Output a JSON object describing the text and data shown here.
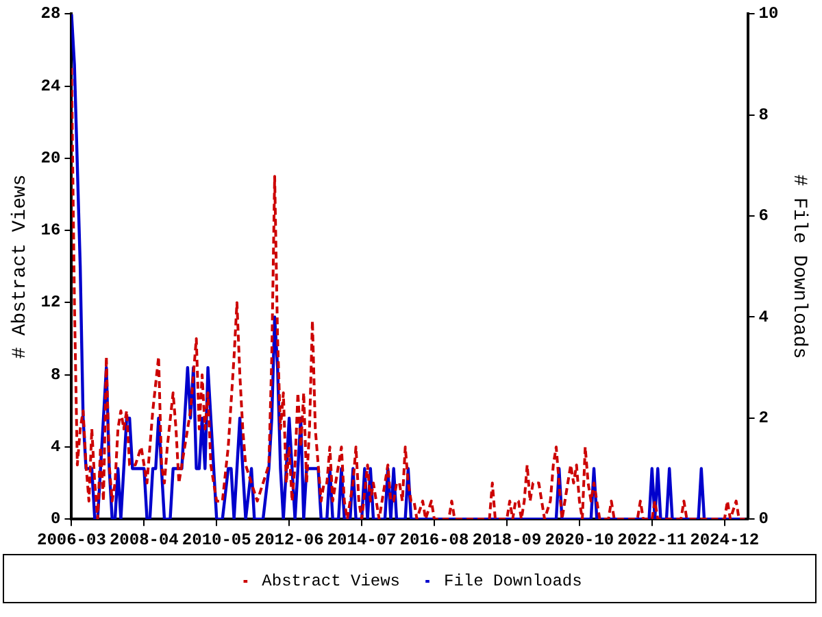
{
  "chart_data": {
    "type": "line",
    "ylabel": "# Abstract Views",
    "y2label": "# File Downloads",
    "xlim": [
      "2006-03",
      "2025-08"
    ],
    "xticks": [
      "2006-03",
      "2008-04",
      "2010-05",
      "2012-06",
      "2014-07",
      "2016-08",
      "2018-09",
      "2020-10",
      "2022-11",
      "2024-12"
    ],
    "ylim": [
      0,
      28
    ],
    "yticks": [
      0,
      4,
      8,
      12,
      16,
      20,
      24,
      28
    ],
    "y2lim": [
      0,
      10
    ],
    "y2ticks": [
      0,
      2,
      4,
      6,
      8,
      10
    ],
    "grid": false,
    "legend": "bottom",
    "marker": "none",
    "series": [
      {
        "name": "Abstract Views",
        "color": "#cc0000",
        "line_style": "dashed",
        "axis": "y",
        "x": [
          "2006-03",
          "2006-04",
          "2006-05",
          "2006-06",
          "2006-07",
          "2006-08",
          "2006-09",
          "2006-10",
          "2006-11",
          "2006-12",
          "2007-01",
          "2007-02",
          "2007-03",
          "2007-04",
          "2007-05",
          "2007-06",
          "2007-07",
          "2007-08",
          "2007-09",
          "2007-10",
          "2007-11",
          "2007-12",
          "2008-01",
          "2008-03",
          "2008-05",
          "2008-07",
          "2008-09",
          "2008-10",
          "2008-11",
          "2008-12",
          "2009-02",
          "2009-03",
          "2009-04",
          "2009-06",
          "2009-08",
          "2009-10",
          "2009-11",
          "2009-12",
          "2010-01",
          "2010-02",
          "2010-03",
          "2010-05",
          "2010-07",
          "2010-09",
          "2010-11",
          "2010-12",
          "2011-01",
          "2011-02",
          "2011-03",
          "2011-05",
          "2011-07",
          "2011-09",
          "2011-11",
          "2011-12",
          "2012-01",
          "2012-02",
          "2012-03",
          "2012-04",
          "2012-05",
          "2012-06",
          "2012-07",
          "2012-08",
          "2012-09",
          "2012-10",
          "2012-11",
          "2012-12",
          "2013-01",
          "2013-02",
          "2013-03",
          "2013-04",
          "2013-05",
          "2013-06",
          "2013-07",
          "2013-08",
          "2013-09",
          "2013-10",
          "2013-11",
          "2013-12",
          "2014-01",
          "2014-02",
          "2014-03",
          "2014-04",
          "2014-05",
          "2014-06",
          "2014-07",
          "2014-09",
          "2014-10",
          "2014-11",
          "2015-01",
          "2015-03",
          "2015-04",
          "2015-05",
          "2015-06",
          "2015-07",
          "2015-08",
          "2015-09",
          "2015-10",
          "2015-11",
          "2015-12",
          "2016-01",
          "2016-02",
          "2016-04",
          "2016-05",
          "2016-07",
          "2016-08",
          "2017-01",
          "2017-02",
          "2017-03",
          "2018-03",
          "2018-04",
          "2018-05",
          "2018-09",
          "2018-10",
          "2018-11",
          "2018-12",
          "2019-01",
          "2019-02",
          "2019-03",
          "2019-04",
          "2019-05",
          "2019-06",
          "2019-07",
          "2019-08",
          "2019-09",
          "2019-10",
          "2019-12",
          "2020-01",
          "2020-02",
          "2020-03",
          "2020-04",
          "2020-05",
          "2020-06",
          "2020-07",
          "2020-08",
          "2020-09",
          "2020-10",
          "2020-11",
          "2020-12",
          "2021-01",
          "2021-02",
          "2021-03",
          "2021-04",
          "2021-05",
          "2021-08",
          "2021-09",
          "2021-10",
          "2022-06",
          "2022-07",
          "2022-08",
          "2022-11",
          "2022-12",
          "2023-01",
          "2023-09",
          "2023-10",
          "2023-11",
          "2024-12",
          "2025-01",
          "2025-02",
          "2025-04",
          "2025-05",
          "2025-07"
        ],
        "values": [
          25,
          12,
          3,
          5,
          6,
          3,
          1,
          5,
          2,
          0,
          4,
          1,
          9,
          3,
          1,
          2,
          5,
          6,
          5,
          6,
          3,
          3,
          3,
          4,
          2,
          6,
          9,
          3,
          2,
          4,
          7,
          5,
          2,
          4,
          6,
          10,
          5,
          8,
          5,
          7,
          3,
          1,
          1,
          4,
          9,
          12,
          8,
          5,
          3,
          2,
          1,
          2,
          3,
          9,
          19,
          10,
          5,
          7,
          2,
          4,
          1,
          3,
          7,
          4,
          7,
          2,
          5,
          11,
          5,
          3,
          1,
          2,
          2,
          4,
          1,
          2,
          3,
          4,
          1,
          0,
          1,
          2,
          4,
          1,
          0,
          3,
          1,
          2,
          0,
          2,
          3,
          1,
          1,
          2,
          2,
          1,
          4,
          2,
          1,
          1,
          0,
          1,
          0,
          1,
          0,
          0,
          1,
          0,
          0,
          2,
          0,
          0,
          1,
          0,
          1,
          1,
          0,
          1,
          3,
          1,
          2,
          2,
          2,
          1,
          0,
          1,
          3,
          4,
          2,
          0,
          1,
          2,
          3,
          2,
          3,
          1,
          0,
          4,
          2,
          1,
          2,
          1,
          0,
          0,
          1,
          0,
          0,
          1,
          0,
          0,
          1,
          0,
          0,
          1,
          0,
          0,
          1,
          0,
          1,
          0,
          0
        ]
      },
      {
        "name": "File Downloads",
        "color": "#0000cc",
        "line_style": "solid",
        "axis": "y2",
        "x": [
          "2006-03",
          "2006-04",
          "2006-05",
          "2006-06",
          "2006-07",
          "2006-08",
          "2006-09",
          "2006-10",
          "2006-11",
          "2006-12",
          "2007-01",
          "2007-02",
          "2007-03",
          "2007-04",
          "2007-05",
          "2007-06",
          "2007-07",
          "2007-08",
          "2007-09",
          "2007-10",
          "2007-11",
          "2007-12",
          "2008-01",
          "2008-02",
          "2008-03",
          "2008-04",
          "2008-05",
          "2008-06",
          "2008-07",
          "2008-08",
          "2008-09",
          "2008-10",
          "2008-11",
          "2008-12",
          "2009-01",
          "2009-02",
          "2009-03",
          "2009-04",
          "2009-05",
          "2009-06",
          "2009-07",
          "2009-08",
          "2009-09",
          "2009-10",
          "2009-11",
          "2009-12",
          "2010-01",
          "2010-02",
          "2010-03",
          "2010-04",
          "2010-05",
          "2010-07",
          "2010-09",
          "2010-10",
          "2010-11",
          "2010-12",
          "2011-01",
          "2011-02",
          "2011-03",
          "2011-05",
          "2011-06",
          "2011-09",
          "2011-11",
          "2011-12",
          "2012-01",
          "2012-02",
          "2012-03",
          "2012-04",
          "2012-05",
          "2012-06",
          "2012-07",
          "2012-08",
          "2012-09",
          "2012-10",
          "2012-11",
          "2012-12",
          "2013-01",
          "2013-02",
          "2013-03",
          "2013-04",
          "2013-05",
          "2013-07",
          "2013-08",
          "2013-09",
          "2013-11",
          "2013-12",
          "2014-01",
          "2014-03",
          "2014-04",
          "2014-05",
          "2014-07",
          "2014-08",
          "2014-09",
          "2014-10",
          "2014-11",
          "2015-03",
          "2015-04",
          "2015-05",
          "2015-06",
          "2015-07",
          "2015-10",
          "2015-11",
          "2015-12",
          "2020-02",
          "2020-03",
          "2020-04",
          "2021-02",
          "2021-03",
          "2021-04",
          "2022-10",
          "2022-11",
          "2022-12",
          "2023-01",
          "2023-02",
          "2023-04",
          "2023-05",
          "2023-06",
          "2024-03",
          "2024-04",
          "2024-05",
          "2025-07"
        ],
        "values": [
          10,
          9,
          7,
          5,
          2,
          1,
          1,
          1,
          0,
          0,
          1,
          2,
          3,
          1,
          0,
          0,
          1,
          0,
          1,
          2,
          2,
          1,
          1,
          1,
          1,
          1,
          0,
          0,
          1,
          1,
          2,
          1,
          0,
          0,
          0,
          1,
          1,
          1,
          1,
          2,
          3,
          2,
          3,
          1,
          1,
          2,
          1,
          3,
          2,
          1,
          0,
          0,
          1,
          1,
          0,
          1,
          2,
          1,
          0,
          1,
          0,
          0,
          1,
          2,
          4,
          3,
          1,
          0,
          1,
          2,
          1,
          0,
          1,
          2,
          0,
          1,
          1,
          1,
          1,
          1,
          0,
          0,
          1,
          0,
          0,
          1,
          0,
          0,
          1,
          0,
          0,
          1,
          0,
          1,
          0,
          0,
          1,
          0,
          1,
          0,
          0,
          1,
          0,
          0,
          1,
          0,
          0,
          1,
          0,
          0,
          1,
          0,
          1,
          0,
          0,
          1,
          0,
          0,
          1,
          0,
          0
        ]
      }
    ]
  }
}
